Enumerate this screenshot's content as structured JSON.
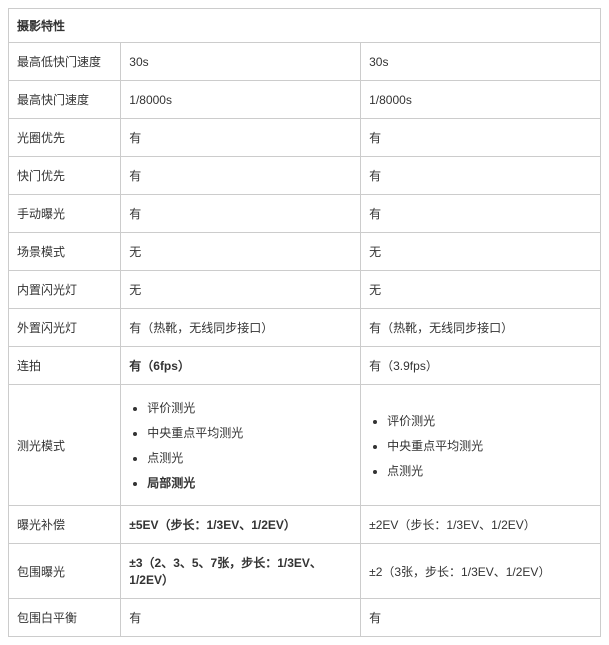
{
  "title": "摄影特性",
  "rows": [
    {
      "label": "最高低快门速度",
      "v1": "30s",
      "v2": "30s"
    },
    {
      "label": "最高快门速度",
      "v1": "1/8000s",
      "v2": "1/8000s"
    },
    {
      "label": "光圈优先",
      "v1": "有",
      "v2": "有"
    },
    {
      "label": "快门优先",
      "v1": "有",
      "v2": "有"
    },
    {
      "label": "手动曝光",
      "v1": "有",
      "v2": "有"
    },
    {
      "label": "场景模式",
      "v1": "无",
      "v2": "无"
    },
    {
      "label": "内置闪光灯",
      "v1": "无",
      "v2": "无"
    },
    {
      "label": "外置闪光灯",
      "v1": "有（热靴，无线同步接口）",
      "v2": "有（热靴，无线同步接口）"
    },
    {
      "label": "连拍",
      "v1": "有（6fps）",
      "v1_bold": true,
      "v2": "有（3.9fps）"
    },
    {
      "label": "测光模式",
      "v1_list": [
        "评价测光",
        "中央重点平均测光",
        "点测光",
        "局部测光"
      ],
      "v1_list_bold_idx": 3,
      "v2_list": [
        "评价测光",
        "中央重点平均测光",
        "点测光"
      ]
    },
    {
      "label": "曝光补偿",
      "v1": "±5EV（步长：1/3EV、1/2EV）",
      "v1_bold": true,
      "v2": "±2EV（步长：1/3EV、1/2EV）"
    },
    {
      "label": "包围曝光",
      "v1": "±3（2、3、5、7张，步长：1/3EV、1/2EV）",
      "v1_bold": true,
      "v2": "±2（3张，步长：1/3EV、1/2EV）"
    },
    {
      "label": "包围白平衡",
      "v1": "有",
      "v2": "有"
    }
  ]
}
